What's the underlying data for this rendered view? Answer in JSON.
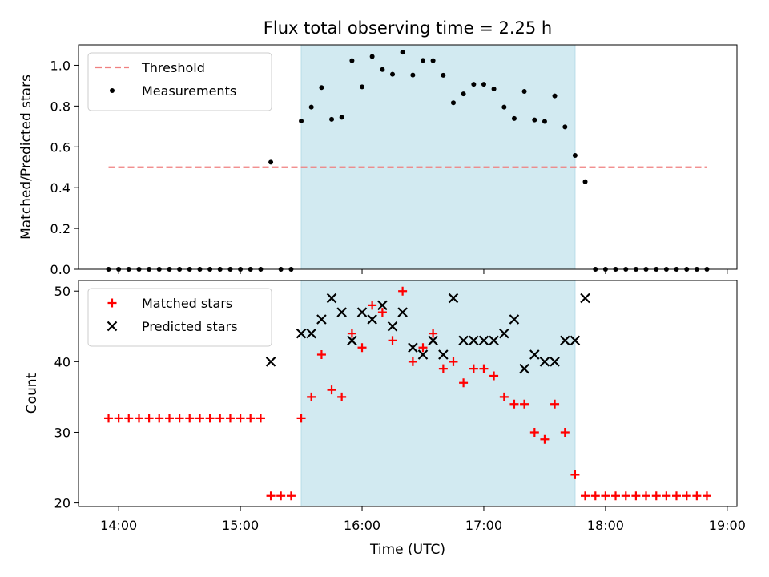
{
  "chart_data": [
    {
      "type": "scatter",
      "panel": "top",
      "title": "Flux total observing time = 2.25 h",
      "xlabel": "",
      "ylabel": "Matched/Predicted stars",
      "ylim": [
        0,
        1.1
      ],
      "yticks": [
        0.0,
        0.2,
        0.4,
        0.6,
        0.8,
        1.0
      ],
      "ytick_labels": [
        "0.0",
        "0.2",
        "0.4",
        "0.6",
        "0.8",
        "1.0"
      ],
      "x_unit": "hours UTC",
      "xlim": [
        13.67,
        19.08
      ],
      "shaded_interval": [
        15.5,
        17.75
      ],
      "shade_color": "#d2eaf1",
      "grid": false,
      "legend_position": "upper-left",
      "series": [
        {
          "name": "Threshold",
          "style": "dashed-line",
          "color": "#f08080",
          "x": [
            13.917,
            18.833
          ],
          "y": [
            0.5,
            0.5
          ]
        },
        {
          "name": "Measurements",
          "style": "dot",
          "color": "#000000",
          "x": [
            13.917,
            14.0,
            14.083,
            14.167,
            14.25,
            14.333,
            14.417,
            14.5,
            14.583,
            14.667,
            14.75,
            14.833,
            14.917,
            15.0,
            15.083,
            15.167,
            15.25,
            15.333,
            15.417,
            15.5,
            15.583,
            15.667,
            15.75,
            15.833,
            15.917,
            16.0,
            16.083,
            16.167,
            16.25,
            16.333,
            16.417,
            16.5,
            16.583,
            16.667,
            16.75,
            16.833,
            16.917,
            17.0,
            17.083,
            17.167,
            17.25,
            17.333,
            17.417,
            17.5,
            17.583,
            17.667,
            17.75,
            17.833,
            17.917,
            18.0,
            18.083,
            18.167,
            18.25,
            18.333,
            18.417,
            18.5,
            18.583,
            18.667,
            18.75,
            18.833
          ],
          "y": [
            0,
            0,
            0,
            0,
            0,
            0,
            0,
            0,
            0,
            0,
            0,
            0,
            0,
            0,
            0,
            0,
            0.525,
            0,
            0,
            0.727,
            0.795,
            0.891,
            0.735,
            0.745,
            1.023,
            0.894,
            1.043,
            0.979,
            0.956,
            1.064,
            0.952,
            1.024,
            1.023,
            0.951,
            0.816,
            0.86,
            0.907,
            0.907,
            0.884,
            0.795,
            0.739,
            0.872,
            0.732,
            0.725,
            0.85,
            0.698,
            0.558,
            0.429,
            0,
            0,
            0,
            0,
            0,
            0,
            0,
            0,
            0,
            0,
            0,
            0
          ]
        }
      ]
    },
    {
      "type": "scatter",
      "panel": "bottom",
      "title": "",
      "xlabel": "Time (UTC)",
      "ylabel": "Count",
      "ylim": [
        19.5,
        51.5
      ],
      "yticks": [
        20,
        30,
        40,
        50
      ],
      "ytick_labels": [
        "20",
        "30",
        "40",
        "50"
      ],
      "x_unit": "hours UTC",
      "xlim": [
        13.67,
        19.08
      ],
      "xticks": [
        14,
        15,
        16,
        17,
        18,
        19
      ],
      "xtick_labels": [
        "14:00",
        "15:00",
        "16:00",
        "17:00",
        "18:00",
        "19:00"
      ],
      "shaded_interval": [
        15.5,
        17.75
      ],
      "shade_color": "#d2eaf1",
      "grid": false,
      "legend_position": "upper-left",
      "series": [
        {
          "name": "Matched stars",
          "style": "plus",
          "color": "#ff0000",
          "x": [
            13.917,
            14.0,
            14.083,
            14.167,
            14.25,
            14.333,
            14.417,
            14.5,
            14.583,
            14.667,
            14.75,
            14.833,
            14.917,
            15.0,
            15.083,
            15.167,
            15.25,
            15.333,
            15.417,
            15.5,
            15.583,
            15.667,
            15.75,
            15.833,
            15.917,
            16.0,
            16.083,
            16.167,
            16.25,
            16.333,
            16.417,
            16.5,
            16.583,
            16.667,
            16.75,
            16.833,
            16.917,
            17.0,
            17.083,
            17.167,
            17.25,
            17.333,
            17.417,
            17.5,
            17.583,
            17.667,
            17.75,
            17.833,
            17.917,
            18.0,
            18.083,
            18.167,
            18.25,
            18.333,
            18.417,
            18.5,
            18.583,
            18.667,
            18.75,
            18.833
          ],
          "y": [
            32,
            32,
            32,
            32,
            32,
            32,
            32,
            32,
            32,
            32,
            32,
            32,
            32,
            32,
            32,
            32,
            21,
            21,
            21,
            32,
            35,
            41,
            36,
            35,
            44,
            42,
            48,
            47,
            43,
            50,
            40,
            42,
            44,
            39,
            40,
            37,
            39,
            39,
            38,
            35,
            34,
            34,
            30,
            29,
            34,
            30,
            24,
            21,
            21,
            21,
            21,
            21,
            21,
            21,
            21,
            21,
            21,
            21,
            21,
            21
          ]
        },
        {
          "name": "Predicted stars",
          "style": "x",
          "color": "#000000",
          "x": [
            15.25,
            15.5,
            15.583,
            15.667,
            15.75,
            15.833,
            15.917,
            16.0,
            16.083,
            16.167,
            16.25,
            16.333,
            16.417,
            16.5,
            16.583,
            16.667,
            16.75,
            16.833,
            16.917,
            17.0,
            17.083,
            17.167,
            17.25,
            17.333,
            17.417,
            17.5,
            17.583,
            17.667,
            17.75,
            17.833
          ],
          "y": [
            40,
            44,
            44,
            46,
            49,
            47,
            43,
            47,
            46,
            48,
            45,
            47,
            42,
            41,
            43,
            41,
            49,
            43,
            43,
            43,
            43,
            44,
            46,
            39,
            41,
            40,
            40,
            43,
            43,
            49
          ]
        }
      ]
    }
  ]
}
